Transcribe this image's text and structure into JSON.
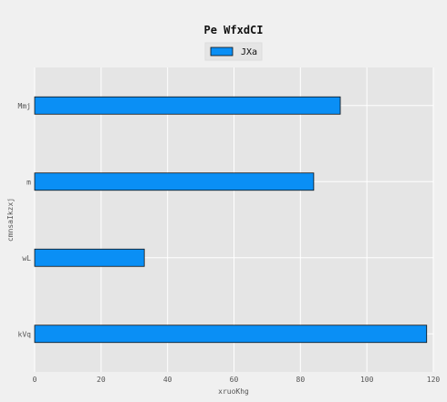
{
  "chart_data": {
    "type": "bar",
    "orientation": "horizontal",
    "title": "Pe WfxdCI",
    "xlabel": "xruoKhg",
    "ylabel": "cmnsaIkzxj",
    "categories": [
      "kVq",
      "wL",
      "m",
      "Mmj"
    ],
    "series": [
      {
        "name": "JXa",
        "values": [
          118,
          33,
          84,
          92
        ]
      }
    ],
    "xlim": [
      0,
      120
    ],
    "xticks": [
      "0",
      "20",
      "40",
      "60",
      "80",
      "100",
      "120"
    ],
    "grid": true,
    "legend_position": "top-center",
    "colors": {
      "bar": "#0a8ff5",
      "bar_edge": "#111111",
      "plot_bg": "#e5e5e5",
      "page_bg": "#f0f0f0",
      "grid": "#ffffff"
    }
  }
}
